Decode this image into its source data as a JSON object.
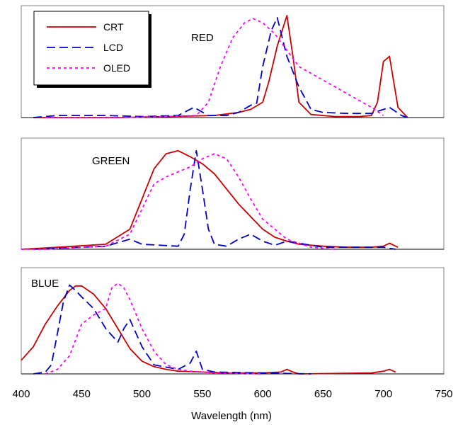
{
  "chart_data": {
    "type": "line",
    "xlabel": "Wavelength (nm)",
    "xlim": [
      400,
      750
    ],
    "x_ticks": [
      400,
      450,
      500,
      550,
      600,
      650,
      700,
      750
    ],
    "x_tick_labels": [
      "400",
      "450",
      "500",
      "550",
      "600",
      "650",
      "700",
      "750"
    ],
    "legend": {
      "position": "top-left",
      "entries": [
        {
          "name": "CRT",
          "color": "#cc0000",
          "dash": "solid"
        },
        {
          "name": "LCD",
          "color": "#0000cc",
          "dash": "dashed"
        },
        {
          "name": "OLED",
          "color": "#ff00ff",
          "dash": "dotted"
        }
      ]
    },
    "panels": [
      {
        "label": "RED",
        "ylim": [
          0,
          1
        ],
        "series": [
          {
            "name": "CRT",
            "x": [
              410,
              440,
              480,
              520,
              560,
              580,
              590,
              600,
              605,
              612,
              620,
              625,
              630,
              640,
              660,
              680,
              690,
              695,
              700,
              705,
              712,
              720
            ],
            "y": [
              0,
              0,
              0,
              0.01,
              0.02,
              0.05,
              0.08,
              0.15,
              0.35,
              0.7,
              1.0,
              0.6,
              0.15,
              0.03,
              0.01,
              0.01,
              0.02,
              0.15,
              0.55,
              0.6,
              0.1,
              0
            ]
          },
          {
            "name": "LCD",
            "x": [
              410,
              430,
              470,
              500,
              530,
              543,
              555,
              570,
              580,
              590,
              595,
              600,
              607,
              612,
              620,
              630,
              640,
              650,
              670,
              690,
              700,
              705,
              715,
              720
            ],
            "y": [
              0,
              0.02,
              0.02,
              0.01,
              0.02,
              0.1,
              0.02,
              0.02,
              0.05,
              0.12,
              0.14,
              0.5,
              0.85,
              0.98,
              0.6,
              0.3,
              0.08,
              0.05,
              0.04,
              0.04,
              0.08,
              0.1,
              0.02,
              0
            ]
          },
          {
            "name": "OLED",
            "x": [
              420,
              480,
              520,
              545,
              555,
              565,
              575,
              585,
              592,
              600,
              610,
              630,
              660,
              690,
              700
            ],
            "y": [
              0,
              0,
              0.01,
              0.02,
              0.15,
              0.5,
              0.78,
              0.93,
              0.97,
              0.93,
              0.82,
              0.5,
              0.3,
              0.1,
              0.02
            ]
          }
        ]
      },
      {
        "label": "GREEN",
        "ylim": [
          0,
          1
        ],
        "series": [
          {
            "name": "CRT",
            "x": [
              400,
              430,
              470,
              490,
              500,
              510,
              520,
              530,
              540,
              550,
              560,
              570,
              580,
              600,
              610,
              620,
              630,
              650,
              670,
              690,
              700,
              705,
              712
            ],
            "y": [
              0,
              0.02,
              0.05,
              0.2,
              0.5,
              0.8,
              0.95,
              0.98,
              0.92,
              0.85,
              0.75,
              0.6,
              0.45,
              0.2,
              0.12,
              0.08,
              0.05,
              0.03,
              0.02,
              0.02,
              0.03,
              0.06,
              0.02
            ]
          },
          {
            "name": "LCD",
            "x": [
              410,
              470,
              490,
              500,
              530,
              535,
              540,
              545,
              550,
              555,
              560,
              570,
              580,
              590,
              600,
              610,
              620,
              650,
              700,
              710
            ],
            "y": [
              0,
              0.03,
              0.1,
              0.05,
              0.03,
              0.15,
              0.6,
              0.98,
              0.6,
              0.2,
              0.05,
              0.03,
              0.1,
              0.15,
              0.08,
              0.04,
              0.08,
              0.02,
              0.02,
              0
            ]
          },
          {
            "name": "OLED",
            "x": [
              400,
              420,
              470,
              490,
              500,
              510,
              520,
              540,
              550,
              560,
              570,
              580,
              590,
              600,
              620,
              640,
              660
            ],
            "y": [
              0,
              0,
              0.03,
              0.15,
              0.4,
              0.65,
              0.72,
              0.82,
              0.9,
              0.95,
              0.9,
              0.72,
              0.5,
              0.3,
              0.1,
              0.02,
              0
            ]
          }
        ]
      },
      {
        "label": "BLUE",
        "ylim": [
          0,
          1
        ],
        "series": [
          {
            "name": "CRT",
            "x": [
              400,
              410,
              420,
              430,
              440,
              445,
              450,
              460,
              470,
              480,
              490,
              500,
              510,
              520,
              530,
              550,
              570,
              600,
              615,
              620,
              625,
              630,
              690,
              700,
              705,
              710
            ],
            "y": [
              0.15,
              0.3,
              0.55,
              0.75,
              0.92,
              0.97,
              0.97,
              0.88,
              0.72,
              0.5,
              0.28,
              0.14,
              0.08,
              0.05,
              0.03,
              0.02,
              0.01,
              0.01,
              0.02,
              0.05,
              0.02,
              0,
              0.01,
              0.03,
              0.05,
              0.02
            ]
          },
          {
            "name": "LCD",
            "x": [
              410,
              420,
              425,
              430,
              435,
              440,
              445,
              450,
              460,
              470,
              480,
              485,
              490,
              500,
              510,
              530,
              540,
              545,
              550,
              560,
              600,
              640
            ],
            "y": [
              0,
              0.02,
              0.1,
              0.45,
              0.8,
              0.98,
              0.92,
              0.85,
              0.72,
              0.5,
              0.35,
              0.5,
              0.6,
              0.3,
              0.1,
              0.05,
              0.12,
              0.25,
              0.05,
              0.02,
              0.01,
              0
            ]
          },
          {
            "name": "OLED",
            "x": [
              420,
              430,
              440,
              450,
              460,
              470,
              475,
              480,
              485,
              490,
              500,
              510,
              520,
              530,
              540,
              560,
              600
            ],
            "y": [
              0,
              0.05,
              0.2,
              0.55,
              0.65,
              0.72,
              0.95,
              1.0,
              0.95,
              0.82,
              0.5,
              0.25,
              0.1,
              0.05,
              0.03,
              0.01,
              0
            ]
          }
        ]
      }
    ]
  }
}
